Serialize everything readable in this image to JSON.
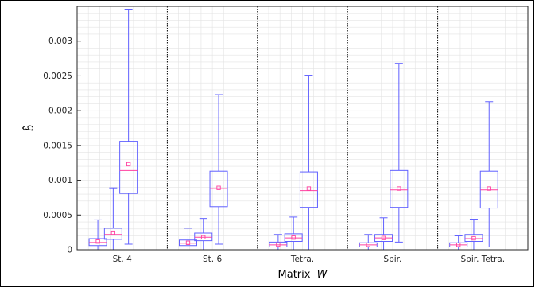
{
  "chart_data": {
    "type": "boxplot",
    "xlabel": "Matrix",
    "xlabel_var": "W",
    "ylabel": "b",
    "ylim": [
      0,
      0.0035
    ],
    "yticks": [
      0,
      0.0005,
      0.001,
      0.0015,
      0.002,
      0.0025,
      0.003
    ],
    "ytick_labels": [
      "0",
      "0.0005",
      "0.001",
      "0.0015",
      "0.002",
      "0.0025",
      "0.003"
    ],
    "grid": true,
    "colors": {
      "box": "#6060ff",
      "median": "#ff40a0",
      "mean": "#ff40a0",
      "separator": "#000000",
      "grid": "#e3e3e3"
    },
    "groups": [
      {
        "label": "St. 4",
        "boxes": [
          {
            "min": 0.0,
            "q1": 6e-05,
            "median": 0.000105,
            "q3": 0.00016,
            "max": 0.00043,
            "mean": 0.000118
          },
          {
            "min": 0.0,
            "q1": 0.00015,
            "median": 0.00022,
            "q3": 0.00031,
            "max": 0.00089,
            "mean": 0.000245
          },
          {
            "min": 8e-05,
            "q1": 0.00081,
            "median": 0.00114,
            "q3": 0.00156,
            "max": 0.00346,
            "mean": 0.00123
          }
        ]
      },
      {
        "label": "St. 6",
        "boxes": [
          {
            "min": 0.0,
            "q1": 6e-05,
            "median": 9.5e-05,
            "q3": 0.00014,
            "max": 0.00031,
            "mean": 0.0001
          },
          {
            "min": 0.0,
            "q1": 0.00013,
            "median": 0.00018,
            "q3": 0.00024,
            "max": 0.00045,
            "mean": 0.00018
          },
          {
            "min": 8e-05,
            "q1": 0.00062,
            "median": 0.00088,
            "q3": 0.00113,
            "max": 0.00223,
            "mean": 0.00089
          }
        ]
      },
      {
        "label": "Tetra.",
        "boxes": [
          {
            "min": 0.0,
            "q1": 4e-05,
            "median": 7e-05,
            "q3": 0.00011,
            "max": 0.00022,
            "mean": 7.5e-05
          },
          {
            "min": 0.0,
            "q1": 0.00012,
            "median": 0.00017,
            "q3": 0.00023,
            "max": 0.00047,
            "mean": 0.000175
          },
          {
            "min": 0.0,
            "q1": 0.00061,
            "median": 0.00085,
            "q3": 0.00112,
            "max": 0.00251,
            "mean": 0.00088
          }
        ]
      },
      {
        "label": "Spir.",
        "boxes": [
          {
            "min": 0.0,
            "q1": 4e-05,
            "median": 7e-05,
            "q3": 0.0001,
            "max": 0.00022,
            "mean": 7.2e-05
          },
          {
            "min": 0.0,
            "q1": 0.00012,
            "median": 0.00017,
            "q3": 0.00022,
            "max": 0.00046,
            "mean": 0.00017
          },
          {
            "min": 0.00011,
            "q1": 0.00061,
            "median": 0.00086,
            "q3": 0.00114,
            "max": 0.00268,
            "mean": 0.00088
          }
        ]
      },
      {
        "label": "Spir. Tetra.",
        "boxes": [
          {
            "min": 0.0,
            "q1": 4e-05,
            "median": 7e-05,
            "q3": 0.0001,
            "max": 0.0002,
            "mean": 7.2e-05
          },
          {
            "min": 0.0,
            "q1": 0.00012,
            "median": 0.00016,
            "q3": 0.00022,
            "max": 0.00044,
            "mean": 0.000165
          },
          {
            "min": 4e-05,
            "q1": 0.0006,
            "median": 0.00086,
            "q3": 0.00113,
            "max": 0.00213,
            "mean": 0.00088
          }
        ]
      }
    ]
  }
}
